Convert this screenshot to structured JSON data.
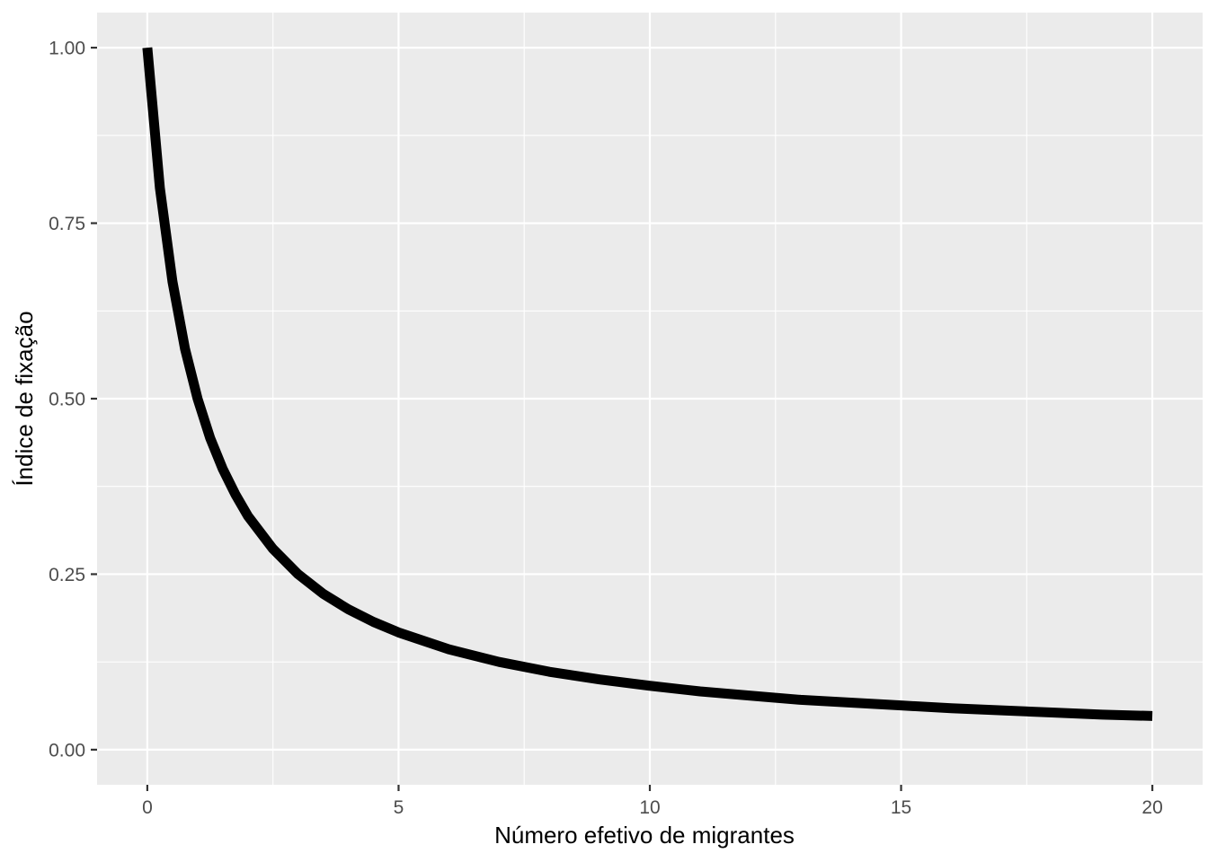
{
  "chart_data": {
    "type": "line",
    "title": "",
    "xlabel": "Número efetivo de migrantes",
    "ylabel": "Índice de fixação",
    "xlim": [
      -1,
      21
    ],
    "ylim": [
      -0.05,
      1.05
    ],
    "x_ticks": [
      0,
      5,
      10,
      15,
      20
    ],
    "x_tick_labels": [
      "0",
      "5",
      "10",
      "15",
      "20"
    ],
    "y_ticks": [
      0,
      0.25,
      0.5,
      0.75,
      1
    ],
    "y_tick_labels": [
      "0.00",
      "0.25",
      "0.50",
      "0.75",
      "1.00"
    ],
    "grid": true,
    "legend": "none",
    "series": [
      {
        "color": "#000000",
        "x": [
          0,
          0.25,
          0.5,
          0.75,
          1,
          1.25,
          1.5,
          1.75,
          2,
          2.5,
          3,
          3.5,
          4,
          4.5,
          5,
          6,
          7,
          8,
          9,
          10,
          11,
          12,
          13,
          14,
          15,
          16,
          17,
          18,
          19,
          20
        ],
        "y": [
          1.0,
          0.8,
          0.667,
          0.571,
          0.5,
          0.444,
          0.4,
          0.364,
          0.333,
          0.286,
          0.25,
          0.222,
          0.2,
          0.182,
          0.167,
          0.143,
          0.125,
          0.111,
          0.1,
          0.091,
          0.083,
          0.077,
          0.071,
          0.067,
          0.063,
          0.059,
          0.056,
          0.053,
          0.05,
          0.048
        ]
      }
    ]
  }
}
